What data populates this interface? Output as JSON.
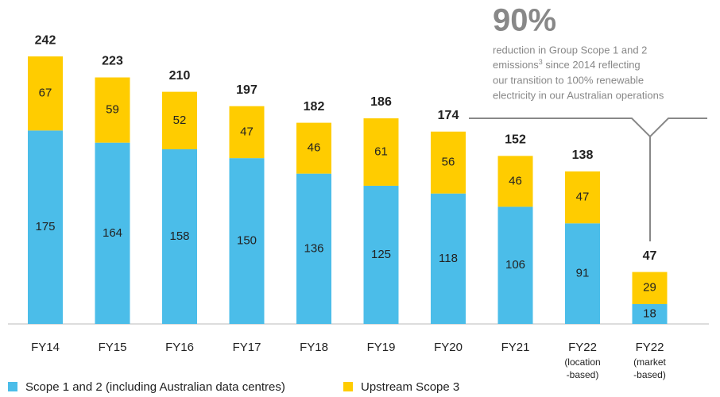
{
  "chart_data": {
    "type": "bar",
    "stacked": true,
    "categories": [
      "FY14",
      "FY15",
      "FY16",
      "FY17",
      "FY18",
      "FY19",
      "FY20",
      "FY21",
      "FY22",
      "FY22"
    ],
    "category_notes": [
      [],
      [],
      [],
      [],
      [],
      [],
      [],
      [],
      [
        "(location",
        "-based)"
      ],
      [
        "(market",
        "-based)"
      ]
    ],
    "series": [
      {
        "name": "Scope 1 and 2 (including Australian data centres)",
        "color": "#4bbde9",
        "values": [
          175,
          164,
          158,
          150,
          136,
          125,
          118,
          106,
          91,
          18
        ]
      },
      {
        "name": "Upstream Scope 3",
        "color": "#ffcc00",
        "values": [
          67,
          59,
          52,
          47,
          46,
          61,
          56,
          46,
          47,
          29
        ]
      }
    ],
    "totals": [
      242,
      223,
      210,
      197,
      182,
      186,
      174,
      152,
      138,
      47
    ],
    "ylim": [
      0,
      260
    ],
    "annotation": {
      "headline": "90%",
      "line1": "reduction in Group Scope 1 and 2",
      "line2": "emissions",
      "superscript": "3",
      "line2_rest": " since 2014 reflecting",
      "line3": "our transition to 100% renewable",
      "line4": "electricity in our Australian operations"
    }
  }
}
